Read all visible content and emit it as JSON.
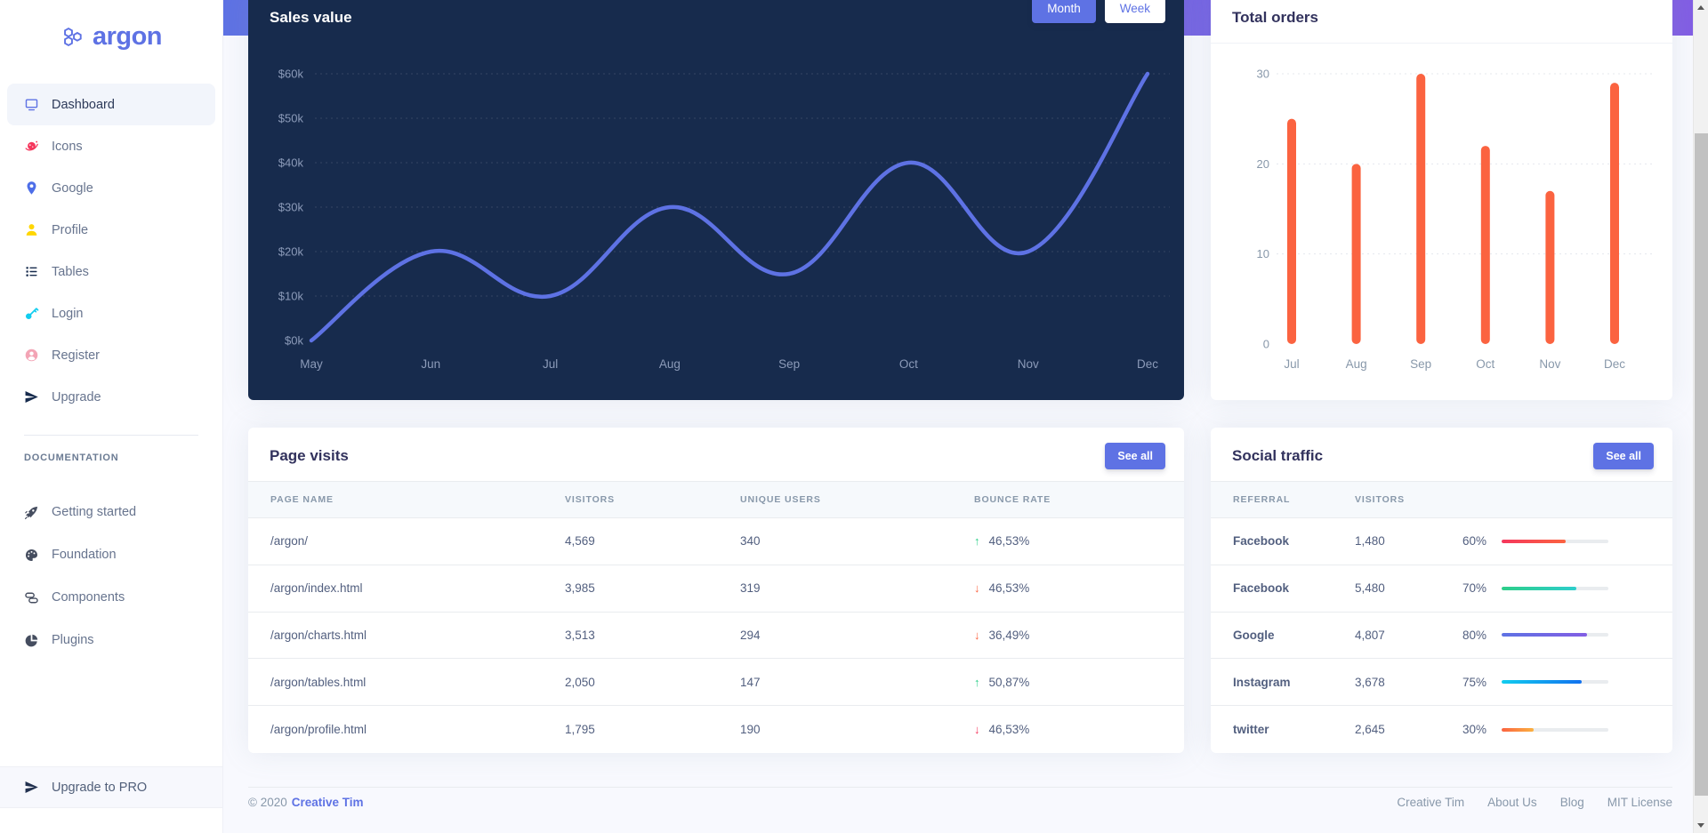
{
  "brand": {
    "name": "argon"
  },
  "sidebar": {
    "items": [
      {
        "label": "Dashboard",
        "icon": "tv-icon",
        "color": "#5e72e4",
        "active": true
      },
      {
        "label": "Icons",
        "icon": "planet-icon",
        "color": "#f5365c",
        "active": false
      },
      {
        "label": "Google",
        "icon": "pin-icon",
        "color": "#4d6ee8",
        "active": false
      },
      {
        "label": "Profile",
        "icon": "user-icon",
        "color": "#ffd600",
        "active": false
      },
      {
        "label": "Tables",
        "icon": "list-icon",
        "color": "#172b4d",
        "active": false
      },
      {
        "label": "Login",
        "icon": "key-icon",
        "color": "#11cdef",
        "active": false
      },
      {
        "label": "Register",
        "icon": "person-circle-icon",
        "color": "#f3a4b5",
        "active": false
      },
      {
        "label": "Upgrade",
        "icon": "send-icon",
        "color": "#172b4d",
        "active": false
      }
    ],
    "section_label": "DOCUMENTATION",
    "docs": [
      {
        "label": "Getting started",
        "icon": "rocket-icon",
        "color": "#454d5f"
      },
      {
        "label": "Foundation",
        "icon": "palette-icon",
        "color": "#454d5f"
      },
      {
        "label": "Components",
        "icon": "components-icon",
        "color": "#454d5f"
      },
      {
        "label": "Plugins",
        "icon": "pie-icon",
        "color": "#454d5f"
      }
    ],
    "footer": {
      "label": "Upgrade to PRO",
      "icon": "send-icon"
    }
  },
  "sales_card": {
    "title": "Sales value",
    "buttons": [
      {
        "label": "Month",
        "active": true
      },
      {
        "label": "Week",
        "active": false
      }
    ]
  },
  "orders_card": {
    "title": "Total orders"
  },
  "chart_data": [
    {
      "type": "line",
      "title": "Sales value",
      "categories": [
        "May",
        "Jun",
        "Jul",
        "Aug",
        "Sep",
        "Oct",
        "Nov",
        "Dec"
      ],
      "values": [
        0,
        20,
        10,
        30,
        15,
        40,
        20,
        60
      ],
      "ytick_labels": [
        "$0k",
        "$10k",
        "$20k",
        "$30k",
        "$40k",
        "$50k",
        "$60k"
      ],
      "ylim": [
        0,
        60
      ],
      "ystep": 10,
      "line_color": "#5e72e4",
      "background": "#172b4d",
      "grid": "dashed horizontal",
      "legend": "none"
    },
    {
      "type": "bar",
      "title": "Total orders",
      "categories": [
        "Jul",
        "Aug",
        "Sep",
        "Oct",
        "Nov",
        "Dec"
      ],
      "values": [
        25,
        20,
        30,
        22,
        17,
        29
      ],
      "ytick_labels": [
        "0",
        "10",
        "20",
        "30"
      ],
      "ylim": [
        0,
        30
      ],
      "ystep": 10,
      "bar_color": "#fb6340",
      "background": "#ffffff",
      "grid": "dashed horizontal",
      "legend": "none"
    }
  ],
  "page_visits": {
    "title": "Page visits",
    "see_all": "See all",
    "columns": [
      "PAGE NAME",
      "VISITORS",
      "UNIQUE USERS",
      "BOUNCE RATE"
    ],
    "rows": [
      {
        "page": "/argon/",
        "visitors": "4,569",
        "unique": "340",
        "direction": "up",
        "arrow": "↑",
        "arrow_color": "#2dce89",
        "rate": "46,53%"
      },
      {
        "page": "/argon/index.html",
        "visitors": "3,985",
        "unique": "319",
        "direction": "down",
        "arrow": "↓",
        "arrow_color": "#fb6340",
        "rate": "46,53%"
      },
      {
        "page": "/argon/charts.html",
        "visitors": "3,513",
        "unique": "294",
        "direction": "down",
        "arrow": "↓",
        "arrow_color": "#fb6340",
        "rate": "36,49%"
      },
      {
        "page": "/argon/tables.html",
        "visitors": "2,050",
        "unique": "147",
        "direction": "up",
        "arrow": "↑",
        "arrow_color": "#2dce89",
        "rate": "50,87%"
      },
      {
        "page": "/argon/profile.html",
        "visitors": "1,795",
        "unique": "190",
        "direction": "down",
        "arrow": "↓",
        "arrow_color": "#f5365c",
        "rate": "46,53%"
      }
    ]
  },
  "social_traffic": {
    "title": "Social traffic",
    "see_all": "See all",
    "columns": [
      "REFERRAL",
      "VISITORS"
    ],
    "rows": [
      {
        "referral": "Facebook",
        "visitors": "1,480",
        "percent": "60%",
        "value": 60,
        "gradient": [
          "#f5365c",
          "#fb6340"
        ]
      },
      {
        "referral": "Facebook",
        "visitors": "5,480",
        "percent": "70%",
        "value": 70,
        "gradient": [
          "#2dce89",
          "#2dcecc"
        ]
      },
      {
        "referral": "Google",
        "visitors": "4,807",
        "percent": "80%",
        "value": 80,
        "gradient": [
          "#5e72e4",
          "#825ee4"
        ]
      },
      {
        "referral": "Instagram",
        "visitors": "3,678",
        "percent": "75%",
        "value": 75,
        "gradient": [
          "#11cdef",
          "#1171ef"
        ]
      },
      {
        "referral": "twitter",
        "visitors": "2,645",
        "percent": "30%",
        "value": 30,
        "gradient": [
          "#fb6340",
          "#fbb140"
        ]
      }
    ]
  },
  "footer": {
    "copyright": "© 2020",
    "company": "Creative Tim",
    "links": [
      "Creative Tim",
      "About Us",
      "Blog",
      "MIT License"
    ]
  },
  "colors": {
    "primary": "#5e72e4",
    "dark_card": "#172b4d",
    "orange": "#fb6340",
    "success": "#2dce89",
    "danger": "#f5365c",
    "muted": "#8898aa",
    "heading": "#32325d",
    "page_bg": "#f8f9fe",
    "header_gradient": [
      "#5e72e4",
      "#825ee4"
    ]
  }
}
